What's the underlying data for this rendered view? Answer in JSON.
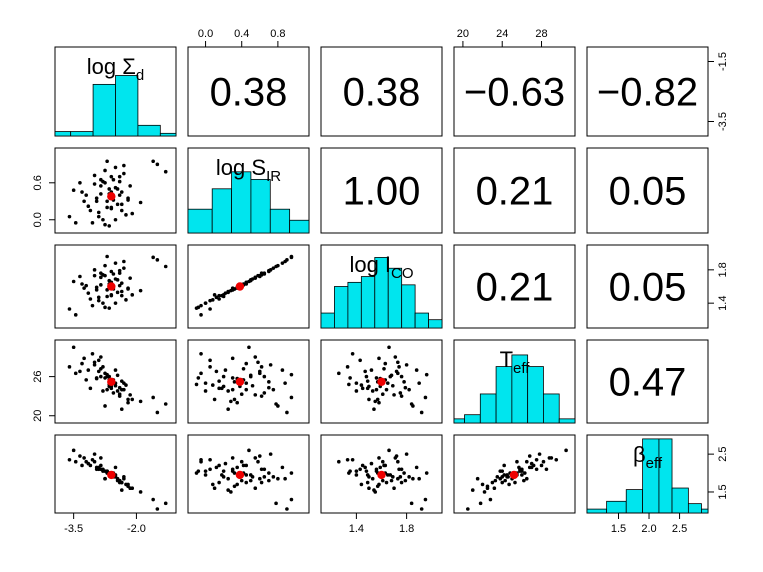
{
  "colors": {
    "hist_fill": "#00e5ee",
    "mean_point": "#ee0000",
    "points": "#000000"
  },
  "chart_data": {
    "type": "scatter",
    "title": "",
    "layout": "pairs-matrix",
    "variables": [
      {
        "id": "logSd",
        "label_main": "log Σ",
        "label_sub": "d",
        "range": [
          -3.85,
          -1.15
        ]
      },
      {
        "id": "logSIR",
        "label_main": "log S",
        "label_sub": "IR",
        "range": [
          -0.15,
          1.1
        ]
      },
      {
        "id": "logICO",
        "label_main": "log I",
        "label_sub": "CO",
        "range": [
          1.15,
          2.05
        ]
      },
      {
        "id": "Teff",
        "label_main": "T",
        "label_sub": "eff",
        "range": [
          19.5,
          31
        ]
      },
      {
        "id": "beff",
        "label_main": "β",
        "label_sub": "eff",
        "range": [
          1.05,
          2.9
        ]
      }
    ],
    "correlations": [
      {
        "row": 0,
        "col": 1,
        "text": "0.38"
      },
      {
        "row": 0,
        "col": 2,
        "text": "0.38"
      },
      {
        "row": 0,
        "col": 3,
        "text": "−0.63"
      },
      {
        "row": 0,
        "col": 4,
        "text": "−0.82"
      },
      {
        "row": 1,
        "col": 2,
        "text": "1.00"
      },
      {
        "row": 1,
        "col": 3,
        "text": "0.21"
      },
      {
        "row": 1,
        "col": 4,
        "text": "0.05"
      },
      {
        "row": 2,
        "col": 3,
        "text": "0.21"
      },
      {
        "row": 2,
        "col": 4,
        "text": "0.05"
      },
      {
        "row": 3,
        "col": 4,
        "text": "0.47"
      }
    ],
    "histograms": [
      {
        "var": 0,
        "bins": [
          [
            -3.85,
            -3.5,
            0.05
          ],
          [
            -3.5,
            -3.0,
            0.05
          ],
          [
            -3.0,
            -2.5,
            0.58
          ],
          [
            -2.5,
            -2.0,
            0.68
          ],
          [
            -2.0,
            -1.5,
            0.12
          ],
          [
            -1.5,
            -1.15,
            0.03
          ]
        ]
      },
      {
        "var": 1,
        "bins": [
          [
            -0.15,
            0.1,
            0.28
          ],
          [
            0.1,
            0.3,
            0.52
          ],
          [
            0.3,
            0.5,
            0.72
          ],
          [
            0.5,
            0.7,
            0.63
          ],
          [
            0.7,
            0.9,
            0.28
          ],
          [
            0.9,
            1.1,
            0.15
          ]
        ]
      },
      {
        "var": 2,
        "bins": [
          [
            1.15,
            1.25,
            0.18
          ],
          [
            1.25,
            1.35,
            0.5
          ],
          [
            1.35,
            1.45,
            0.55
          ],
          [
            1.45,
            1.55,
            0.62
          ],
          [
            1.55,
            1.65,
            0.85
          ],
          [
            1.65,
            1.75,
            0.72
          ],
          [
            1.75,
            1.85,
            0.52
          ],
          [
            1.85,
            1.95,
            0.18
          ],
          [
            1.95,
            2.05,
            0.1
          ]
        ]
      },
      {
        "var": 3,
        "bins": [
          [
            19.5,
            20.5,
            0.05
          ],
          [
            20.5,
            22,
            0.1
          ],
          [
            22,
            23.5,
            0.35
          ],
          [
            23.5,
            25,
            0.68
          ],
          [
            25,
            26.5,
            0.82
          ],
          [
            26.5,
            28,
            0.68
          ],
          [
            28,
            29.5,
            0.35
          ],
          [
            29.5,
            31,
            0.05
          ]
        ]
      },
      {
        "var": 4,
        "bins": [
          [
            1.05,
            1.35,
            0.05
          ],
          [
            1.35,
            1.65,
            0.15
          ],
          [
            1.65,
            1.9,
            0.3
          ],
          [
            1.9,
            2.15,
            0.95
          ],
          [
            2.15,
            2.35,
            0.95
          ],
          [
            2.35,
            2.6,
            0.32
          ],
          [
            2.6,
            2.8,
            0.12
          ],
          [
            2.8,
            2.9,
            0.05
          ]
        ]
      }
    ],
    "observations": [
      [
        -2.65,
        0.38,
        1.59,
        24.5,
        1.95
      ],
      [
        -3.6,
        0.05,
        1.33,
        27.5,
        2.35
      ],
      [
        -3.3,
        0.45,
        1.63,
        28.0,
        2.2
      ],
      [
        -2.4,
        0.62,
        1.76,
        23.0,
        1.75
      ],
      [
        -2.55,
        0.32,
        1.57,
        25.2,
        2.0
      ],
      [
        -3.45,
        -0.05,
        1.26,
        26.5,
        2.3
      ],
      [
        -2.7,
        0.2,
        1.48,
        26.0,
        2.05
      ],
      [
        -2.3,
        0.75,
        1.82,
        24.0,
        1.9
      ],
      [
        -2.85,
        0.55,
        1.71,
        29.0,
        2.4
      ],
      [
        -2.1,
        0.1,
        1.5,
        22.5,
        1.6
      ],
      [
        -2.95,
        0.3,
        1.56,
        25.8,
        2.1
      ],
      [
        -2.5,
        0.85,
        1.88,
        27.0,
        2.15
      ],
      [
        -3.1,
        0.15,
        1.45,
        24.2,
        2.2
      ],
      [
        -2.75,
        0.6,
        1.73,
        26.5,
        1.85
      ],
      [
        -2.35,
        0.25,
        1.54,
        21.0,
        1.55
      ],
      [
        -1.5,
        0.9,
        1.92,
        20.5,
        1.05
      ],
      [
        -2.8,
        0.0,
        1.4,
        23.8,
        2.05
      ],
      [
        -2.6,
        0.45,
        1.65,
        25.0,
        1.95
      ],
      [
        -3.0,
        0.72,
        1.8,
        27.8,
        2.5
      ],
      [
        -2.2,
        0.35,
        1.58,
        22.0,
        1.7
      ],
      [
        -2.65,
        -0.1,
        1.34,
        24.8,
        2.0
      ],
      [
        -2.45,
        0.5,
        1.68,
        26.2,
        1.8
      ],
      [
        -3.2,
        0.4,
        1.61,
        25.5,
        2.3
      ],
      [
        -2.9,
        0.05,
        1.43,
        28.5,
        2.1
      ],
      [
        -2.55,
        0.65,
        1.75,
        23.5,
        1.9
      ],
      [
        -1.6,
        0.95,
        1.95,
        22.8,
        1.3
      ],
      [
        -2.7,
        0.3,
        1.56,
        24.0,
        2.05
      ],
      [
        -2.35,
        0.15,
        1.49,
        25.3,
        1.75
      ],
      [
        -3.35,
        0.6,
        1.72,
        26.8,
        2.45
      ],
      [
        -2.75,
        0.8,
        1.85,
        21.5,
        1.85
      ],
      [
        -2.5,
        0.0,
        1.4,
        25.0,
        1.95
      ],
      [
        -2.85,
        0.42,
        1.62,
        27.2,
        2.2
      ],
      [
        -2.15,
        0.55,
        1.7,
        23.2,
        1.6
      ],
      [
        -2.6,
        0.2,
        1.5,
        24.5,
        1.9
      ],
      [
        -3.05,
        -0.05,
        1.37,
        29.5,
        2.35
      ],
      [
        -2.4,
        0.7,
        1.79,
        24.3,
        1.8
      ],
      [
        -2.95,
        0.35,
        1.59,
        25.7,
        2.15
      ],
      [
        -2.65,
        0.5,
        1.67,
        26.0,
        1.95
      ],
      [
        -1.9,
        0.28,
        1.55,
        22.2,
        1.5
      ],
      [
        -2.8,
        0.62,
        1.74,
        27.5,
        2.1
      ],
      [
        -2.25,
        0.08,
        1.44,
        24.7,
        1.7
      ],
      [
        -3.5,
        0.48,
        1.66,
        30.5,
        2.6
      ],
      [
        -2.55,
        0.38,
        1.6,
        25.5,
        1.95
      ],
      [
        -2.7,
        0.95,
        1.96,
        26.3,
        2.0
      ],
      [
        -2.45,
        0.25,
        1.53,
        23.8,
        1.85
      ],
      [
        -3.0,
        0.58,
        1.73,
        28.2,
        2.3
      ],
      [
        -2.35,
        0.45,
        1.64,
        24.0,
        1.75
      ],
      [
        -2.9,
        0.12,
        1.47,
        26.8,
        2.15
      ],
      [
        -2.6,
        0.7,
        1.78,
        25.2,
        2.0
      ],
      [
        -2.2,
        0.32,
        1.57,
        22.5,
        1.65
      ],
      [
        -3.15,
        0.22,
        1.52,
        27.0,
        2.25
      ],
      [
        -2.5,
        0.52,
        1.69,
        24.6,
        1.9
      ],
      [
        -2.75,
        -0.08,
        1.35,
        25.8,
        2.05
      ],
      [
        -2.4,
        0.4,
        1.61,
        23.3,
        1.8
      ],
      [
        -1.3,
        0.78,
        1.84,
        21.8,
        1.2
      ],
      [
        -2.85,
        0.65,
        1.76,
        26.0,
        2.1
      ],
      [
        -2.6,
        0.18,
        1.49,
        24.2,
        1.95
      ],
      [
        -2.3,
        0.88,
        1.9,
        25.0,
        1.85
      ],
      [
        -3.25,
        0.3,
        1.58,
        28.8,
        2.4
      ],
      [
        -2.65,
        0.42,
        1.63,
        25.5,
        2.0
      ]
    ],
    "means": [
      -2.6,
      0.38,
      1.6,
      25.2,
      1.95
    ],
    "axes": [
      {
        "var": 0,
        "side": "bottom",
        "ticks": [
          -3.5,
          -2.0
        ],
        "labels": [
          "-3.5",
          "-2.0"
        ]
      },
      {
        "var": 2,
        "side": "bottom",
        "ticks": [
          1.4,
          1.8
        ],
        "labels": [
          "1.4",
          "1.8"
        ]
      },
      {
        "var": 4,
        "side": "bottom",
        "ticks": [
          1.5,
          2.0,
          2.5
        ],
        "labels": [
          "1.5",
          "2.0",
          "2.5"
        ]
      },
      {
        "var": 1,
        "side": "top",
        "ticks": [
          0.0,
          0.4,
          0.8
        ],
        "labels": [
          "0.0",
          "0.4",
          "0.8"
        ]
      },
      {
        "var": 3,
        "side": "top",
        "ticks": [
          20,
          24,
          28
        ],
        "labels": [
          "20",
          "24",
          "28"
        ]
      },
      {
        "var": 1,
        "side": "left",
        "ticks": [
          0.0,
          0.6
        ],
        "labels": [
          "0.0",
          "0.6"
        ]
      },
      {
        "var": 3,
        "side": "left",
        "ticks": [
          20,
          26
        ],
        "labels": [
          "20",
          "26"
        ]
      },
      {
        "var": 0,
        "side": "right",
        "ticks": [
          -1.5,
          -3.5
        ],
        "labels": [
          "-1.5",
          "-3.5"
        ]
      },
      {
        "var": 2,
        "side": "right",
        "ticks": [
          1.4,
          1.8
        ],
        "labels": [
          "1.4",
          "1.8"
        ]
      },
      {
        "var": 4,
        "side": "right",
        "ticks": [
          1.5,
          2.5
        ],
        "labels": [
          "1.5",
          "2.5"
        ]
      }
    ]
  }
}
